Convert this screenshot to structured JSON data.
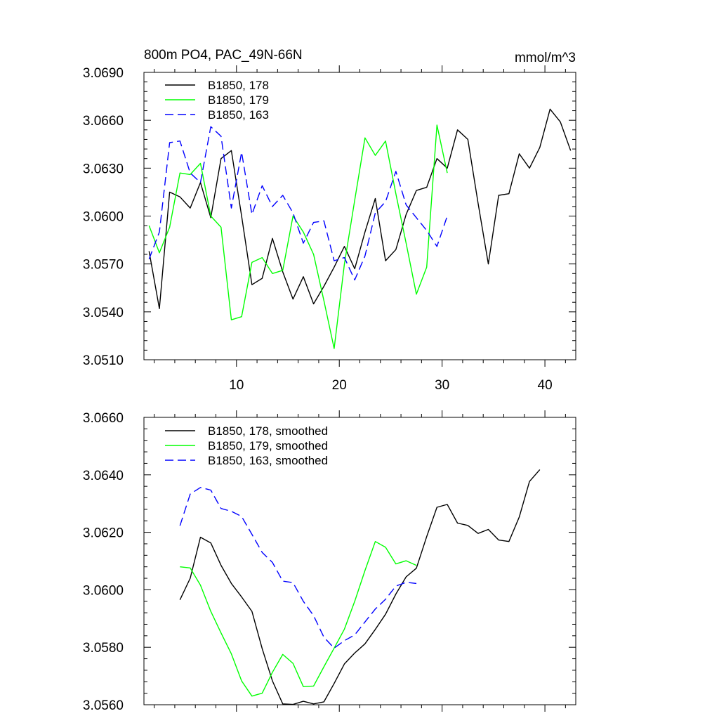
{
  "chart_data": [
    {
      "type": "line",
      "title": "800m PO4, PAC_49N-66N",
      "units": "mmol/m^3",
      "xlim": [
        1,
        43
      ],
      "ylim": [
        3.051,
        3.069
      ],
      "x_ticks": [
        10,
        20,
        30,
        40
      ],
      "x_tick_labels": [
        "10",
        "20",
        "30",
        "40"
      ],
      "y_ticks": [
        3.051,
        3.054,
        3.057,
        3.06,
        3.063,
        3.066,
        3.069
      ],
      "y_tick_labels": [
        "3.0510",
        "3.0540",
        "3.0570",
        "3.0600",
        "3.0630",
        "3.0660",
        "3.0690"
      ],
      "series": [
        {
          "name": "B1850, 178",
          "color": "#000000",
          "dash": "solid",
          "x": [
            1.5,
            2.5,
            3.5,
            4.5,
            5.5,
            6.5,
            7.5,
            8.5,
            9.5,
            10.5,
            11.5,
            12.5,
            13.5,
            14.5,
            15.5,
            16.5,
            17.5,
            18.5,
            19.5,
            20.5,
            21.5,
            22.5,
            23.5,
            24.5,
            25.5,
            26.5,
            27.5,
            28.5,
            29.5,
            30.5,
            31.5,
            32.5,
            33.5,
            34.5,
            35.5,
            36.5,
            37.5,
            38.5,
            39.5,
            40.5,
            41.5,
            42.5
          ],
          "values": [
            3.0578,
            3.0542,
            3.0615,
            3.0612,
            3.0605,
            3.0621,
            3.0599,
            3.0636,
            3.0641,
            3.06,
            3.0557,
            3.0561,
            3.0586,
            3.0565,
            3.0548,
            3.0562,
            3.0545,
            3.0556,
            3.0568,
            3.0581,
            3.0567,
            3.059,
            3.0611,
            3.0572,
            3.0579,
            3.0601,
            3.0616,
            3.0618,
            3.0636,
            3.063,
            3.0654,
            3.0648,
            3.0608,
            3.057,
            3.0613,
            3.0614,
            3.0639,
            3.063,
            3.0643,
            3.0667,
            3.0659,
            3.0641
          ]
        },
        {
          "name": "B1850, 179",
          "color": "#00ff00",
          "dash": "solid",
          "x": [
            1.5,
            2.5,
            3.5,
            4.5,
            5.5,
            6.5,
            7.5,
            8.5,
            9.5,
            10.5,
            11.5,
            12.5,
            13.5,
            14.5,
            15.5,
            16.5,
            17.5,
            18.5,
            19.5,
            20.5,
            21.5,
            22.5,
            23.5,
            24.5,
            25.5,
            26.5,
            27.5,
            28.5,
            29.5,
            30.5
          ],
          "values": [
            3.0594,
            3.0577,
            3.0593,
            3.0627,
            3.0626,
            3.0633,
            3.06,
            3.0593,
            3.0535,
            3.0537,
            3.0571,
            3.0574,
            3.0564,
            3.0566,
            3.06,
            3.059,
            3.0576,
            3.0547,
            3.0517,
            3.057,
            3.061,
            3.0649,
            3.0638,
            3.0647,
            3.0614,
            3.0583,
            3.0551,
            3.0568,
            3.0657,
            3.0627
          ]
        },
        {
          "name": "B1850, 163",
          "color": "#0000ff",
          "dash": "dashed",
          "x": [
            1.5,
            2.5,
            3.5,
            4.5,
            5.5,
            6.5,
            7.5,
            8.5,
            9.5,
            10.5,
            11.5,
            12.5,
            13.5,
            14.5,
            15.5,
            16.5,
            17.5,
            18.5,
            19.5,
            20.5,
            21.5,
            22.5,
            23.5,
            24.5,
            25.5,
            26.5,
            27.5,
            28.5,
            29.5,
            30.5
          ],
          "values": [
            3.0573,
            3.059,
            3.0646,
            3.0647,
            3.0627,
            3.0621,
            3.0656,
            3.065,
            3.0605,
            3.064,
            3.0601,
            3.0619,
            3.0606,
            3.0613,
            3.0602,
            3.0583,
            3.0596,
            3.0597,
            3.0572,
            3.0574,
            3.056,
            3.0575,
            3.0602,
            3.0609,
            3.0628,
            3.0607,
            3.0599,
            3.0591,
            3.0581,
            3.06
          ]
        }
      ]
    },
    {
      "type": "line",
      "xlim": [
        1,
        43
      ],
      "ylim": [
        3.056,
        3.066
      ],
      "x_ticks": [
        10,
        20,
        30,
        40
      ],
      "y_ticks": [
        3.056,
        3.058,
        3.06,
        3.062,
        3.064,
        3.066
      ],
      "y_tick_labels": [
        "3.0560",
        "3.0580",
        "3.0600",
        "3.0620",
        "3.0640",
        "3.0660"
      ],
      "series": [
        {
          "name": "B1850, 178, smoothed",
          "color": "#000000",
          "dash": "solid",
          "x": [
            4.5,
            5.5,
            6.5,
            7.5,
            8.5,
            9.5,
            10.5,
            11.5,
            12.5,
            13.5,
            14.5,
            15.5,
            16.5,
            17.5,
            18.5,
            19.5,
            20.5,
            21.5,
            22.5,
            23.5,
            24.5,
            25.5,
            26.5,
            27.5,
            28.5,
            29.5,
            30.5,
            31.5,
            32.5,
            33.5,
            34.5,
            35.5,
            36.5,
            37.5,
            38.5,
            39.5
          ],
          "values": [
            3.05965,
            3.0604,
            3.06183,
            3.06163,
            3.06085,
            3.06022,
            3.05975,
            3.05925,
            3.05795,
            3.05683,
            3.05603,
            3.05601,
            3.05612,
            3.05603,
            3.0561,
            3.05674,
            3.05742,
            3.0578,
            3.05812,
            3.05862,
            3.05915,
            3.05985,
            3.06045,
            3.06075,
            3.06185,
            3.06287,
            3.06297,
            3.06232,
            3.06224,
            3.06196,
            3.0621,
            3.06173,
            3.06168,
            3.06253,
            3.06377,
            3.06418
          ]
        },
        {
          "name": "B1850, 179, smoothed",
          "color": "#00ff00",
          "dash": "solid",
          "x": [
            4.5,
            5.5,
            6.5,
            7.5,
            8.5,
            9.5,
            10.5,
            11.5,
            12.5,
            13.5,
            14.5,
            15.5,
            16.5,
            17.5,
            18.5,
            19.5,
            20.5,
            21.5,
            22.5,
            23.5,
            24.5,
            25.5,
            26.5,
            27.5
          ],
          "values": [
            3.0608,
            3.06076,
            3.06016,
            3.05925,
            3.0585,
            3.05777,
            3.05683,
            3.0563,
            3.0564,
            3.05713,
            3.05775,
            3.05744,
            3.05663,
            3.05665,
            3.05732,
            3.05797,
            3.05863,
            3.0596,
            3.06067,
            3.06168,
            3.06148,
            3.0609,
            3.06101,
            3.06085
          ]
        },
        {
          "name": "B1850, 163, smoothed",
          "color": "#0000ff",
          "dash": "dashed",
          "x": [
            4.5,
            5.5,
            6.5,
            7.5,
            8.5,
            9.5,
            10.5,
            11.5,
            12.5,
            13.5,
            14.5,
            15.5,
            16.5,
            17.5,
            18.5,
            19.5,
            20.5,
            21.5,
            22.5,
            23.5,
            24.5,
            25.5,
            26.5,
            27.5
          ],
          "values": [
            3.06223,
            3.06333,
            3.06356,
            3.06347,
            3.06283,
            3.06273,
            3.06255,
            3.06193,
            3.0613,
            3.06095,
            3.0603,
            3.06025,
            3.0596,
            3.0591,
            3.05835,
            3.05797,
            3.05823,
            3.05843,
            3.05888,
            3.05933,
            3.05967,
            3.06013,
            3.06026,
            3.06022
          ]
        }
      ]
    }
  ]
}
